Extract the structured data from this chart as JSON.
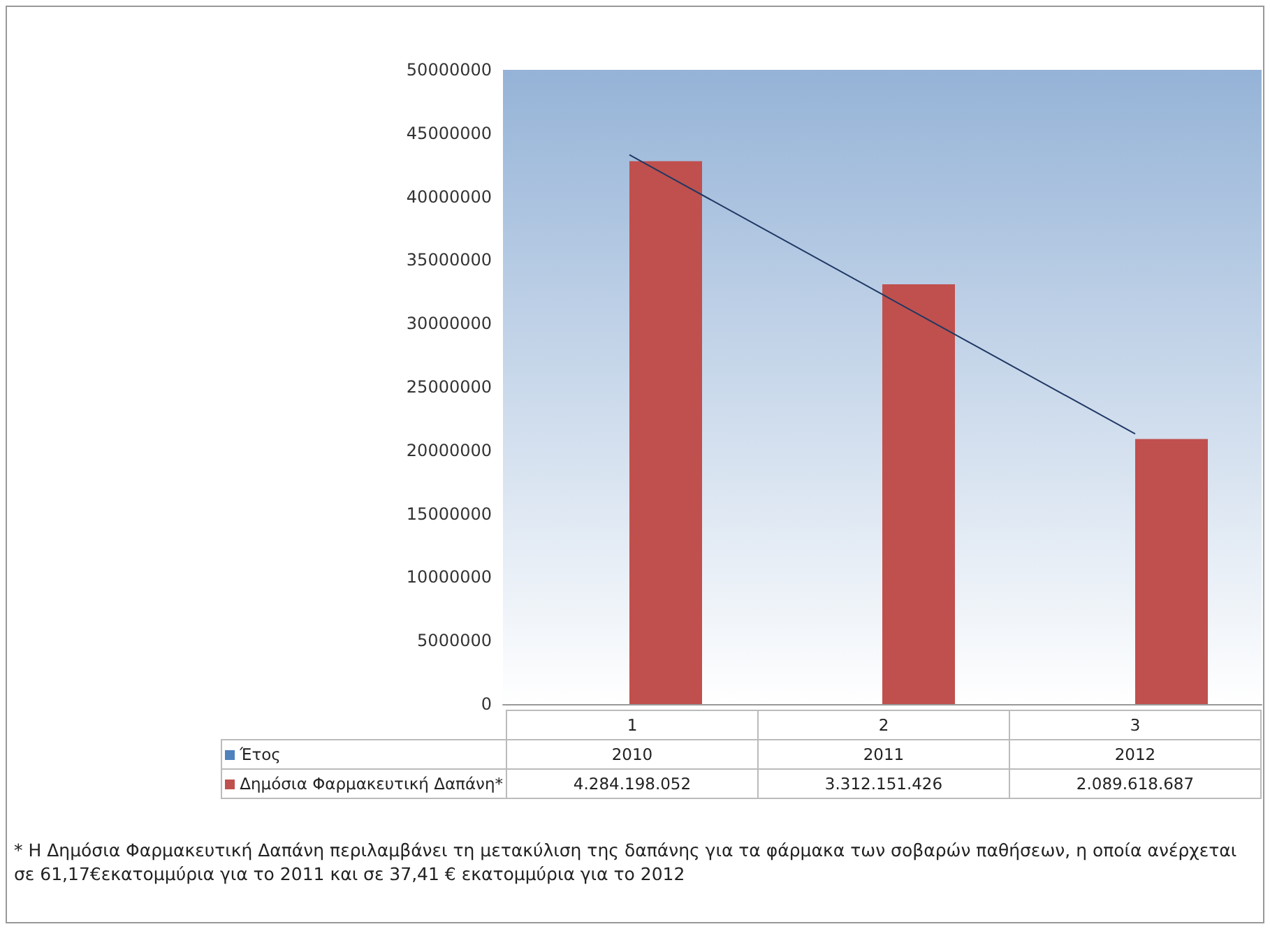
{
  "chart_data": {
    "type": "bar",
    "categories": [
      "1",
      "2",
      "3"
    ],
    "series": [
      {
        "name": "Έτος",
        "color": "#4f81bd",
        "values": [
          2010,
          2011,
          2012
        ],
        "value_labels": [
          "2010",
          "2011",
          "2012"
        ]
      },
      {
        "name": "Δημόσια Φαρμακευτική Δαπάνη*",
        "color": "#c0504d",
        "values": [
          42800000,
          33100000,
          20900000
        ]
      },
      {
        "type": "line",
        "color": "#1f3864",
        "x": [
          "1",
          "3"
        ],
        "values": [
          43300000,
          21300000
        ],
        "marker": "none"
      }
    ],
    "ylim": [
      0,
      50000000
    ],
    "yticks": [
      0,
      5000000,
      10000000,
      15000000,
      20000000,
      25000000,
      30000000,
      35000000,
      40000000,
      45000000,
      50000000
    ],
    "grid": false,
    "legend": "bottom",
    "annotations": [
      "4.284.198.052",
      "3.312.151.426",
      "2.089.618.687",
      "* Η Δημόσια Φαρμακευτική Δαπάνη περιλαμβάνει τη μετακύλιση της δαπάνης για τα φάρμακα των σοβαρών παθήσεων, η οποία ανέρχεται σε 61,17€εκατομμύρια για το 2011 και σε 37,41 € εκατομμύρια για το 2012"
    ]
  }
}
